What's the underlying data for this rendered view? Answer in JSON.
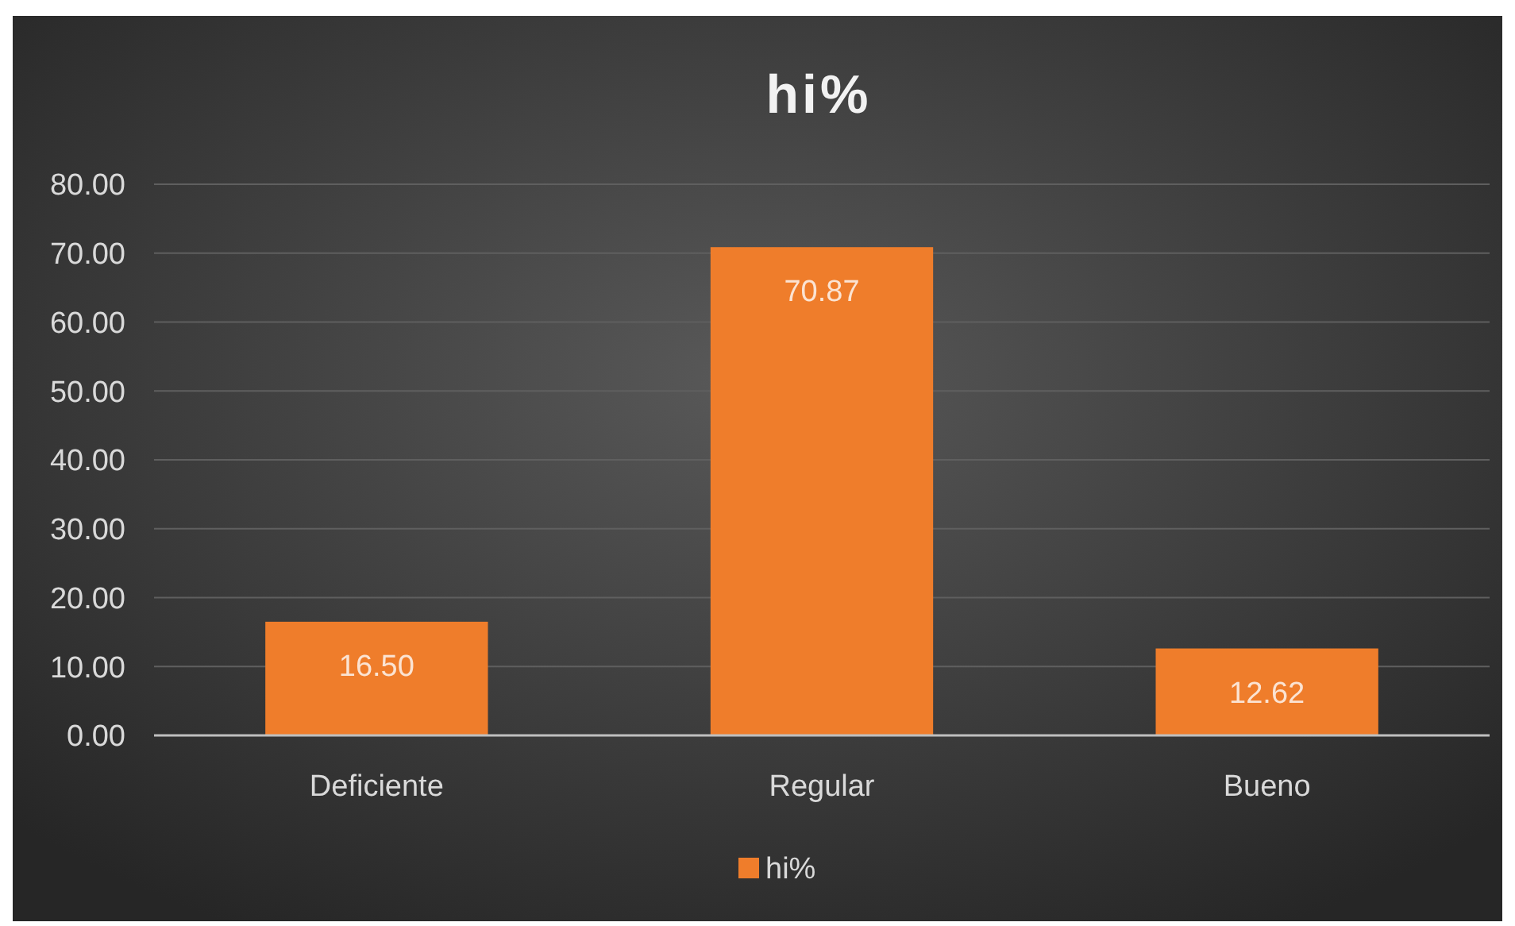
{
  "chart_data": {
    "type": "bar",
    "title": "hi%",
    "categories": [
      "Deficiente",
      "Regular",
      "Bueno"
    ],
    "series": [
      {
        "name": "hi%",
        "color": "#ef7d2b",
        "values": [
          16.5,
          70.87,
          12.62
        ],
        "value_labels": [
          "16.50",
          "70.87",
          "12.62"
        ]
      }
    ],
    "ylim": [
      0,
      80
    ],
    "yticks": [
      {
        "value": 0,
        "label": "0.00"
      },
      {
        "value": 10,
        "label": "10.00"
      },
      {
        "value": 20,
        "label": "20.00"
      },
      {
        "value": 30,
        "label": "30.00"
      },
      {
        "value": 40,
        "label": "40.00"
      },
      {
        "value": 50,
        "label": "50.00"
      },
      {
        "value": 60,
        "label": "60.00"
      },
      {
        "value": 70,
        "label": "70.00"
      },
      {
        "value": 80,
        "label": "80.00"
      }
    ],
    "grid": "y",
    "legend": "bottom"
  }
}
